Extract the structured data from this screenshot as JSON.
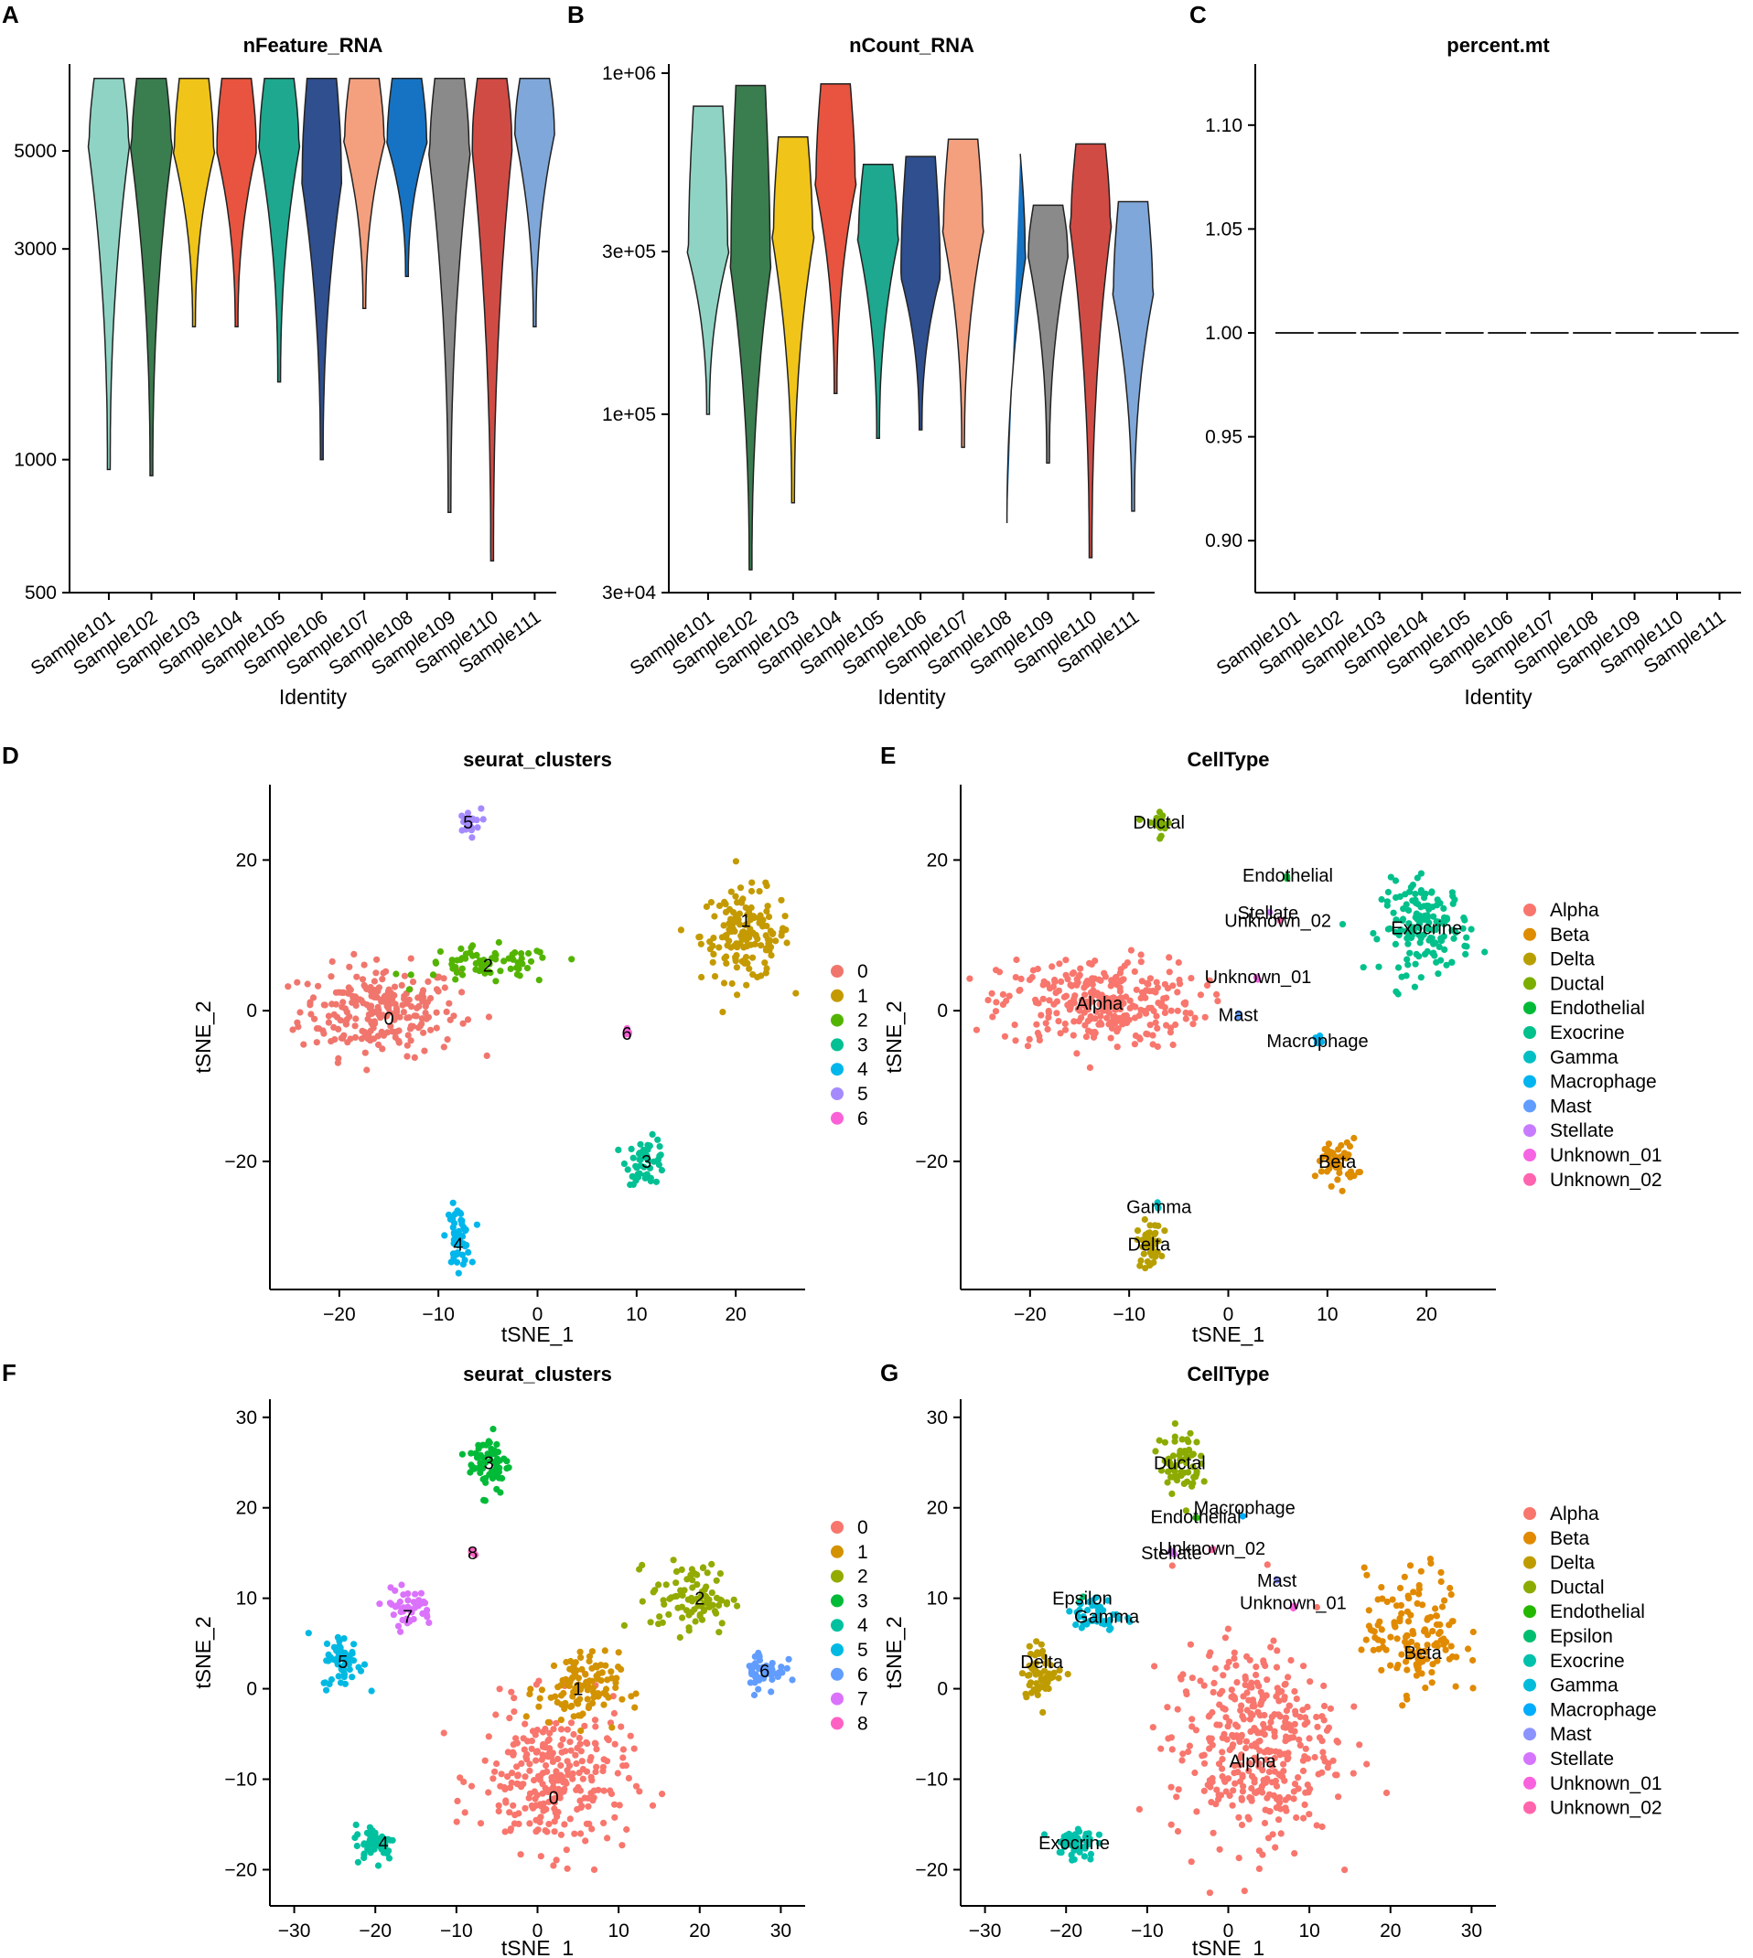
{
  "chart_data": [
    {
      "panel": "A",
      "type": "violin",
      "title": "nFeature_RNA",
      "xlabel": "Identity",
      "ylabel": "",
      "y_scale": "log",
      "yticks": [
        500,
        1000,
        3000,
        5000
      ],
      "ylim": [
        500,
        7500
      ],
      "categories": [
        "Sample101",
        "Sample102",
        "Sample103",
        "Sample104",
        "Sample105",
        "Sample106",
        "Sample107",
        "Sample108",
        "Sample109",
        "Sample110",
        "Sample111"
      ],
      "colors": [
        "#8fd3c4",
        "#3a7d4f",
        "#f0c419",
        "#e8543f",
        "#1ea88f",
        "#2f4f8f",
        "#f4a07f",
        "#1673c4",
        "#8a8a8a",
        "#d14b45",
        "#7fa7d9"
      ],
      "series": [
        {
          "min": 950,
          "max": 7300,
          "median": 5200
        },
        {
          "min": 920,
          "max": 7300,
          "median": 5100
        },
        {
          "min": 2000,
          "max": 7300,
          "median": 5000
        },
        {
          "min": 2000,
          "max": 7300,
          "median": 5100
        },
        {
          "min": 1500,
          "max": 7300,
          "median": 5200
        },
        {
          "min": 1000,
          "max": 7300,
          "median": 4400
        },
        {
          "min": 2200,
          "max": 7300,
          "median": 5300
        },
        {
          "min": 2600,
          "max": 7300,
          "median": 5300
        },
        {
          "min": 760,
          "max": 7300,
          "median": 5000
        },
        {
          "min": 590,
          "max": 7300,
          "median": 5300
        },
        {
          "min": 2000,
          "max": 7300,
          "median": 5600
        }
      ]
    },
    {
      "panel": "B",
      "type": "violin",
      "title": "nCount_RNA",
      "xlabel": "Identity",
      "ylabel": "",
      "y_scale": "log",
      "yticks": [
        30000,
        100000,
        300000,
        1000000
      ],
      "ytick_labels": [
        "3e+04",
        "1e+05",
        "3e+05",
        "1e+06"
      ],
      "ylim": [
        30000,
        1000000
      ],
      "categories": [
        "Sample101",
        "Sample102",
        "Sample103",
        "Sample104",
        "Sample105",
        "Sample106",
        "Sample107",
        "Sample108",
        "Sample109",
        "Sample110",
        "Sample111"
      ],
      "colors": [
        "#8fd3c4",
        "#3a7d4f",
        "#f0c419",
        "#e8543f",
        "#1ea88f",
        "#2f4f8f",
        "#f4a07f",
        "#1673c4",
        "#8a8a8a",
        "#d14b45",
        "#7fa7d9"
      ],
      "series": [
        {
          "min": 100000,
          "max": 800000,
          "median": 300000
        },
        {
          "min": 35000,
          "max": 920000,
          "median": 280000
        },
        {
          "min": 55000,
          "max": 650000,
          "median": 330000
        },
        {
          "min": 115000,
          "max": 930000,
          "median": 480000
        },
        {
          "min": 85000,
          "max": 540000,
          "median": 330000
        },
        {
          "min": 90000,
          "max": 570000,
          "median": 260000
        },
        {
          "min": 80000,
          "max": 640000,
          "median": 350000
        },
        {
          "min": 45000,
          "max": 580000,
          "median": 300000
        },
        {
          "min": 72000,
          "max": 410000,
          "median": 300000
        },
        {
          "min": 38000,
          "max": 620000,
          "median": 360000
        },
        {
          "min": 52000,
          "max": 420000,
          "median": 230000
        }
      ]
    },
    {
      "panel": "C",
      "type": "violin",
      "title": "percent.mt",
      "xlabel": "Identity",
      "ylabel": "",
      "yticks": [
        0.9,
        0.95,
        1.0,
        1.05,
        1.1
      ],
      "ytick_labels": [
        "0.90",
        "0.95",
        "1.00",
        "1.05",
        "1.10"
      ],
      "ylim": [
        0.875,
        1.125
      ],
      "categories": [
        "Sample101",
        "Sample102",
        "Sample103",
        "Sample104",
        "Sample105",
        "Sample106",
        "Sample107",
        "Sample108",
        "Sample109",
        "Sample110",
        "Sample111"
      ],
      "values": [
        1.0,
        1.0,
        1.0,
        1.0,
        1.0,
        1.0,
        1.0,
        1.0,
        1.0,
        1.0,
        1.0
      ]
    },
    {
      "panel": "D",
      "type": "scatter",
      "title": "seurat_clusters",
      "xlabel": "tSNE_1",
      "ylabel": "tSNE_2",
      "xlim": [
        -27,
        27
      ],
      "ylim": [
        -37,
        30
      ],
      "xticks": [
        -20,
        -10,
        0,
        10,
        20
      ],
      "yticks": [
        -20,
        0,
        20
      ],
      "legend": [
        "0",
        "1",
        "2",
        "3",
        "4",
        "5",
        "6"
      ],
      "colors": [
        "#f0766d",
        "#c49a00",
        "#53b400",
        "#00c094",
        "#00b6eb",
        "#a58aff",
        "#fb61d7"
      ],
      "clusters": [
        {
          "label": "0",
          "center": [
            -16,
            0
          ],
          "label_pos": [
            -15,
            -1
          ],
          "spread": [
            8,
            6
          ],
          "n": 240
        },
        {
          "label": "1",
          "center": [
            21,
            10
          ],
          "label_pos": [
            21,
            12
          ],
          "spread": [
            4.5,
            6
          ],
          "n": 150
        },
        {
          "label": "2",
          "center": [
            -5,
            6
          ],
          "label_pos": [
            -5,
            6
          ],
          "spread": [
            7,
            2.5
          ],
          "n": 70
        },
        {
          "label": "3",
          "center": [
            11,
            -20
          ],
          "label_pos": [
            11,
            -20
          ],
          "spread": [
            2,
            3
          ],
          "n": 50
        },
        {
          "label": "4",
          "center": [
            -8,
            -30
          ],
          "label_pos": [
            -8,
            -31
          ],
          "spread": [
            1.2,
            4
          ],
          "n": 50
        },
        {
          "label": "5",
          "center": [
            -7,
            25
          ],
          "label_pos": [
            -7,
            25
          ],
          "spread": [
            1.3,
            1.8
          ],
          "n": 20
        },
        {
          "label": "6",
          "center": [
            9,
            -3
          ],
          "label_pos": [
            9,
            -3
          ],
          "spread": [
            0.3,
            0.8
          ],
          "n": 6
        }
      ]
    },
    {
      "panel": "E",
      "type": "scatter",
      "title": "CellType",
      "xlabel": "tSNE_1",
      "ylabel": "tSNE_2",
      "xlim": [
        -27,
        27
      ],
      "ylim": [
        -37,
        30
      ],
      "xticks": [
        -20,
        -10,
        0,
        10,
        20
      ],
      "yticks": [
        -20,
        0,
        20
      ],
      "legend": [
        "Alpha",
        "Beta",
        "Delta",
        "Ductal",
        "Endothelial",
        "Exocrine",
        "Gamma",
        "Macrophage",
        "Mast",
        "Stellate",
        "Unknown_01",
        "Unknown_02"
      ],
      "colors": [
        "#f8766d",
        "#de8c00",
        "#b79f00",
        "#7cae00",
        "#00ba38",
        "#00c08b",
        "#00bfc4",
        "#00b4f0",
        "#619cff",
        "#c77cff",
        "#f564e3",
        "#ff64b0"
      ],
      "clusters": [
        {
          "label": "Alpha",
          "center": [
            -13,
            1
          ],
          "label_pos": [
            -13,
            1
          ],
          "spread": [
            10,
            6
          ],
          "n": 300
        },
        {
          "label": "Beta",
          "center": [
            11,
            -20
          ],
          "label_pos": [
            11,
            -20
          ],
          "spread": [
            2,
            3
          ],
          "n": 50
        },
        {
          "label": "Delta",
          "center": [
            -8,
            -31
          ],
          "label_pos": [
            -8,
            -31
          ],
          "spread": [
            1.2,
            3
          ],
          "n": 45
        },
        {
          "label": "Ductal",
          "center": [
            -7,
            25
          ],
          "label_pos": [
            -7,
            25
          ],
          "spread": [
            1.3,
            1.8
          ],
          "n": 20
        },
        {
          "label": "Endothelial",
          "center": [
            6,
            18
          ],
          "label_pos": [
            6,
            18
          ],
          "spread": [
            0.3,
            0.3
          ],
          "n": 2
        },
        {
          "label": "Exocrine",
          "center": [
            20,
            11
          ],
          "label_pos": [
            20,
            11
          ],
          "spread": [
            4.5,
            6
          ],
          "n": 150
        },
        {
          "label": "Gamma",
          "center": [
            -7,
            -26
          ],
          "label_pos": [
            -7,
            -26
          ],
          "spread": [
            0.5,
            0.8
          ],
          "n": 4
        },
        {
          "label": "Macrophage",
          "center": [
            9,
            -4
          ],
          "label_pos": [
            9,
            -4
          ],
          "spread": [
            0.3,
            1.0
          ],
          "n": 8
        },
        {
          "label": "Mast",
          "center": [
            1,
            -0.5
          ],
          "label_pos": [
            1,
            -0.5
          ],
          "spread": [
            0.3,
            0.3
          ],
          "n": 2
        },
        {
          "label": "Stellate",
          "center": [
            4,
            13
          ],
          "label_pos": [
            4,
            13
          ],
          "spread": [
            0.3,
            0.3
          ],
          "n": 1
        },
        {
          "label": "Unknown_01",
          "center": [
            3,
            4.5
          ],
          "label_pos": [
            3,
            4.5
          ],
          "spread": [
            0.3,
            0.3
          ],
          "n": 2
        },
        {
          "label": "Unknown_02",
          "center": [
            5,
            12
          ],
          "label_pos": [
            5,
            12
          ],
          "spread": [
            0.3,
            0.3
          ],
          "n": 2
        }
      ]
    },
    {
      "panel": "F",
      "type": "scatter",
      "title": "seurat_clusters",
      "xlabel": "tSNE_1",
      "ylabel": "tSNE_2",
      "xlim": [
        -33,
        33
      ],
      "ylim": [
        -24,
        32
      ],
      "xticks": [
        -30,
        -20,
        -10,
        0,
        10,
        20,
        30
      ],
      "yticks": [
        -20,
        -10,
        0,
        10,
        20,
        30
      ],
      "legend": [
        "0",
        "1",
        "2",
        "3",
        "4",
        "5",
        "6",
        "7",
        "8"
      ],
      "colors": [
        "#f8766d",
        "#d39200",
        "#93aa00",
        "#00ba38",
        "#00c19f",
        "#00b9e3",
        "#619cff",
        "#db72fb",
        "#ff61c3"
      ],
      "clusters": [
        {
          "label": "0",
          "center": [
            2,
            -10
          ],
          "label_pos": [
            2,
            -12
          ],
          "spread": [
            9,
            8
          ],
          "n": 280
        },
        {
          "label": "1",
          "center": [
            5,
            0
          ],
          "label_pos": [
            5,
            0
          ],
          "spread": [
            5,
            4
          ],
          "n": 110
        },
        {
          "label": "2",
          "center": [
            19,
            10
          ],
          "label_pos": [
            20,
            10
          ],
          "spread": [
            5,
            4
          ],
          "n": 90
        },
        {
          "label": "3",
          "center": [
            -6,
            25
          ],
          "label_pos": [
            -6,
            25
          ],
          "spread": [
            2.5,
            3.5
          ],
          "n": 65
        },
        {
          "label": "4",
          "center": [
            -20,
            -17
          ],
          "label_pos": [
            -19,
            -17
          ],
          "spread": [
            2.5,
            2
          ],
          "n": 50
        },
        {
          "label": "5",
          "center": [
            -24,
            3
          ],
          "label_pos": [
            -24,
            3
          ],
          "spread": [
            2.5,
            3
          ],
          "n": 55
        },
        {
          "label": "6",
          "center": [
            28,
            2
          ],
          "label_pos": [
            28,
            2
          ],
          "spread": [
            2.5,
            2.5
          ],
          "n": 50
        },
        {
          "label": "7",
          "center": [
            -16,
            9
          ],
          "label_pos": [
            -16,
            8
          ],
          "spread": [
            3,
            2
          ],
          "n": 45
        },
        {
          "label": "8",
          "center": [
            -8,
            15
          ],
          "label_pos": [
            -8,
            15
          ],
          "spread": [
            0.5,
            0.7
          ],
          "n": 6
        }
      ]
    },
    {
      "panel": "G",
      "type": "scatter",
      "title": "CellType",
      "xlabel": "tSNE_1",
      "ylabel": "tSNE_2",
      "xlim": [
        -33,
        33
      ],
      "ylim": [
        -24,
        32
      ],
      "xticks": [
        -30,
        -20,
        -10,
        0,
        10,
        20,
        30
      ],
      "yticks": [
        -20,
        -10,
        0,
        10,
        20,
        30
      ],
      "legend": [
        "Alpha",
        "Beta",
        "Delta",
        "Ductal",
        "Endothelial",
        "Epsilon",
        "Exocrine",
        "Gamma",
        "Macrophage",
        "Mast",
        "Stellate",
        "Unknown_01",
        "Unknown_02"
      ],
      "colors": [
        "#f8766d",
        "#e18a00",
        "#be9c00",
        "#8cab00",
        "#24b700",
        "#00be70",
        "#00c1ab",
        "#00bbda",
        "#00acfc",
        "#8b93ff",
        "#d575fe",
        "#f962dd",
        "#ff65ac"
      ],
      "clusters": [
        {
          "label": "Alpha",
          "center": [
            3,
            -6
          ],
          "label_pos": [
            3,
            -8
          ],
          "spread": [
            10,
            11
          ],
          "n": 380
        },
        {
          "label": "Beta",
          "center": [
            23,
            6
          ],
          "label_pos": [
            24,
            4
          ],
          "spread": [
            6,
            7
          ],
          "n": 140
        },
        {
          "label": "Delta",
          "center": [
            -23,
            2
          ],
          "label_pos": [
            -23,
            3
          ],
          "spread": [
            2.5,
            3
          ],
          "n": 55
        },
        {
          "label": "Ductal",
          "center": [
            -6,
            25
          ],
          "label_pos": [
            -6,
            25
          ],
          "spread": [
            2.5,
            3.5
          ],
          "n": 65
        },
        {
          "label": "Endothelial",
          "center": [
            -4,
            19
          ],
          "label_pos": [
            -4,
            19
          ],
          "spread": [
            0.3,
            0.3
          ],
          "n": 2
        },
        {
          "label": "Epsilon",
          "center": [
            -18,
            10
          ],
          "label_pos": [
            -18,
            10
          ],
          "spread": [
            0.5,
            0.5
          ],
          "n": 3
        },
        {
          "label": "Exocrine",
          "center": [
            -19,
            -17
          ],
          "label_pos": [
            -19,
            -17
          ],
          "spread": [
            2.5,
            2
          ],
          "n": 50
        },
        {
          "label": "Gamma",
          "center": [
            -16,
            8
          ],
          "label_pos": [
            -15,
            8
          ],
          "spread": [
            3,
            2
          ],
          "n": 45
        },
        {
          "label": "Macrophage",
          "center": [
            2,
            19
          ],
          "label_pos": [
            2,
            20
          ],
          "spread": [
            0.3,
            0.3
          ],
          "n": 1
        },
        {
          "label": "Mast",
          "center": [
            6,
            12
          ],
          "label_pos": [
            6,
            12
          ],
          "spread": [
            0.3,
            0.3
          ],
          "n": 2
        },
        {
          "label": "Stellate",
          "center": [
            -7,
            15
          ],
          "label_pos": [
            -7,
            15
          ],
          "spread": [
            0.5,
            0.5
          ],
          "n": 4
        },
        {
          "label": "Unknown_01",
          "center": [
            8,
            9
          ],
          "label_pos": [
            8,
            9.5
          ],
          "spread": [
            0.3,
            0.3
          ],
          "n": 2
        },
        {
          "label": "Unknown_02",
          "center": [
            -2,
            15.5
          ],
          "label_pos": [
            -2,
            15.5
          ],
          "spread": [
            0.3,
            0.3
          ],
          "n": 2
        }
      ]
    }
  ]
}
